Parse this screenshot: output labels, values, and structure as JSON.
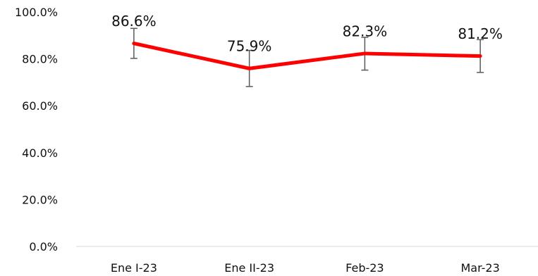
{
  "chart_data": {
    "type": "line",
    "title": "",
    "xlabel": "",
    "ylabel": "",
    "categories": [
      "Ene I-23",
      "Ene II-23",
      "Feb-23",
      "Mar-23"
    ],
    "series": [
      {
        "values": [
          86.6,
          75.9,
          82.3,
          81.2
        ],
        "color": "#ff0000",
        "error_bars": {
          "lower": [
            80.2,
            68.2,
            75.2,
            74.2
          ],
          "upper": [
            93.0,
            83.6,
            89.2,
            88.2
          ]
        }
      }
    ],
    "data_labels": [
      "86.6%",
      "75.9%",
      "82.3%",
      "81.2%"
    ],
    "y_ticks": [
      0,
      20,
      40,
      60,
      80,
      100
    ],
    "y_tick_labels": [
      "0.0%",
      "20.0%",
      "40.0%",
      "60.0%",
      "80.0%",
      "100.0%"
    ],
    "ylim": [
      0,
      100
    ],
    "grid": false,
    "legend": "none",
    "colors": {
      "line": "#ff0000",
      "error_bar": "#595959",
      "axis": "#d9d9d9",
      "text": "#111111"
    }
  }
}
